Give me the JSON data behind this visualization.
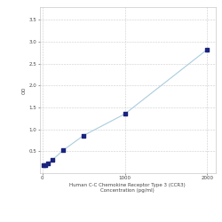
{
  "x_values": [
    15.6,
    31.25,
    62.5,
    125,
    250,
    500,
    1000,
    2000
  ],
  "y_values": [
    0.175,
    0.19,
    0.22,
    0.31,
    0.52,
    0.86,
    1.35,
    2.82
  ],
  "line_color": "#aaccdd",
  "marker_color": "#1a237e",
  "marker_style": "s",
  "marker_size": 2.5,
  "line_width": 0.8,
  "xlabel_line1": "Human C-C Chemokine Receptor Type 3 (CCR3)",
  "xlabel_line2": "Concentration (pg/ml)",
  "ylabel": "OD",
  "xlim": [
    -30,
    2100
  ],
  "ylim": [
    0.0,
    3.8
  ],
  "yticks": [
    0.5,
    1.0,
    1.5,
    2.0,
    2.5,
    3.0,
    3.5
  ],
  "xtick_vals": [
    0,
    1000,
    2000
  ],
  "label_fontsize": 4.0,
  "tick_fontsize": 4.0,
  "grid_color": "#cccccc",
  "background_color": "#ffffff",
  "fig_bg_color": "#ffffff",
  "xtick_label_1000": "1000"
}
